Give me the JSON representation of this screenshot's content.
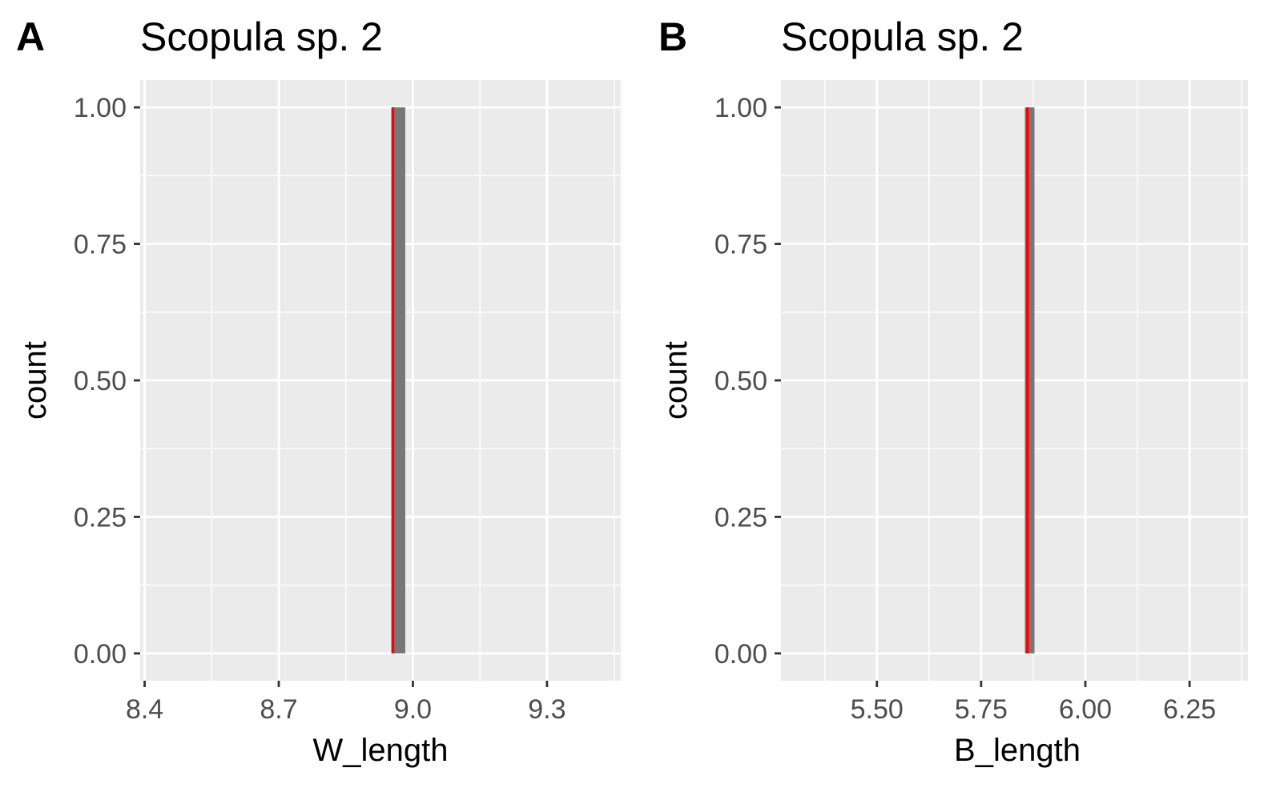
{
  "chart_data": [
    {
      "type": "histogram",
      "tag": "A",
      "title": "Scopula sp. 2",
      "xlabel": "W_length",
      "ylabel": "count",
      "xlim": [
        8.39,
        9.465
      ],
      "ylim": [
        -0.05,
        1.05
      ],
      "xticks": [
        8.4,
        8.7,
        9.0,
        9.3
      ],
      "xtick_labels": [
        "8.4",
        "8.7",
        "9.0",
        "9.3"
      ],
      "yticks": [
        0.0,
        0.25,
        0.5,
        0.75,
        1.0
      ],
      "ytick_labels": [
        "0.00",
        "0.25",
        "0.50",
        "0.75",
        "1.00"
      ],
      "bars": [
        {
          "x0": 8.953,
          "x1": 8.983,
          "count": 1
        }
      ],
      "bar_color": "#777777",
      "vline": {
        "x": 8.955,
        "color": "#ff0000",
        "ymin": 0,
        "ymax": 1
      },
      "grid": true,
      "panel_background": "#ebebeb"
    },
    {
      "type": "histogram",
      "tag": "B",
      "title": "Scopula sp. 2",
      "xlabel": "B_length",
      "ylabel": "count",
      "xlim": [
        5.27,
        6.39
      ],
      "ylim": [
        -0.05,
        1.05
      ],
      "xticks": [
        5.5,
        5.75,
        6.0,
        6.25
      ],
      "xtick_labels": [
        "5.50",
        "5.75",
        "6.00",
        "6.25"
      ],
      "yticks": [
        0.0,
        0.25,
        0.5,
        0.75,
        1.0
      ],
      "ytick_labels": [
        "0.00",
        "0.25",
        "0.50",
        "0.75",
        "1.00"
      ],
      "bars": [
        {
          "x0": 5.855,
          "x1": 5.878,
          "count": 1
        }
      ],
      "bar_color": "#777777",
      "vline": {
        "x": 5.861,
        "color": "#ff0000",
        "ymin": 0,
        "ymax": 1
      },
      "grid": true,
      "panel_background": "#ebebeb"
    }
  ]
}
